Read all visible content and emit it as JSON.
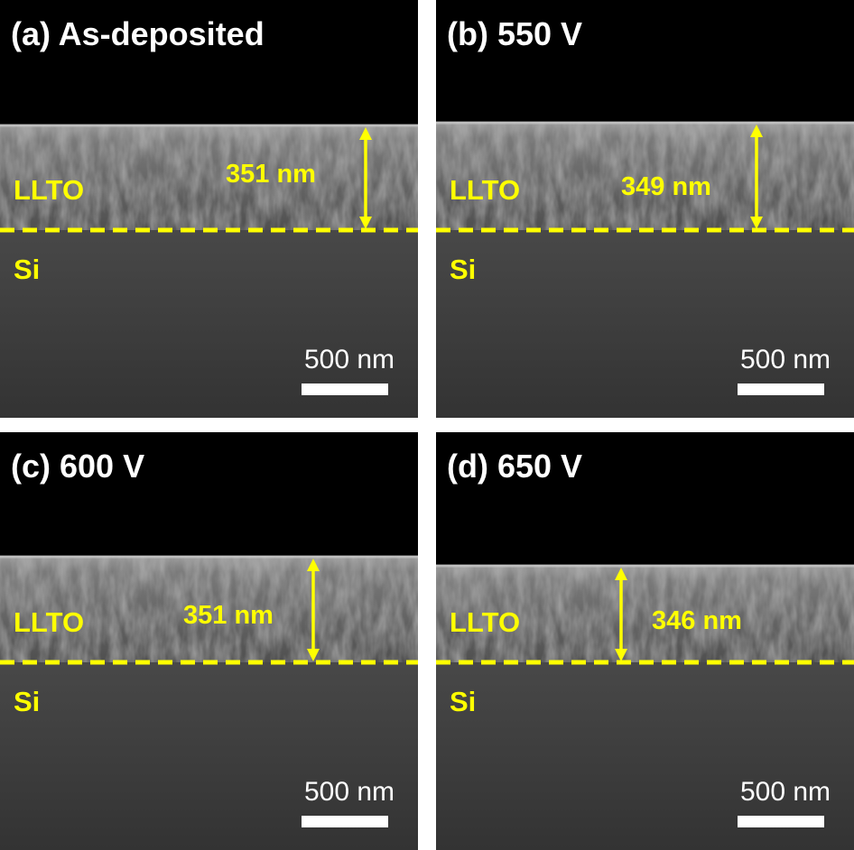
{
  "panels": [
    {
      "label": "(a) As-deposited",
      "film": "LLTO",
      "substrate": "Si",
      "thickness": "351 nm",
      "scale_bar": "500 nm"
    },
    {
      "label": "(b) 550 V",
      "film": "LLTO",
      "substrate": "Si",
      "thickness": "349 nm",
      "scale_bar": "500 nm"
    },
    {
      "label": "(c) 600 V",
      "film": "LLTO",
      "substrate": "Si",
      "thickness": "351 nm",
      "scale_bar": "500 nm"
    },
    {
      "label": "(d) 650 V",
      "film": "LLTO",
      "substrate": "Si",
      "thickness": "346 nm",
      "scale_bar": "500 nm"
    }
  ]
}
